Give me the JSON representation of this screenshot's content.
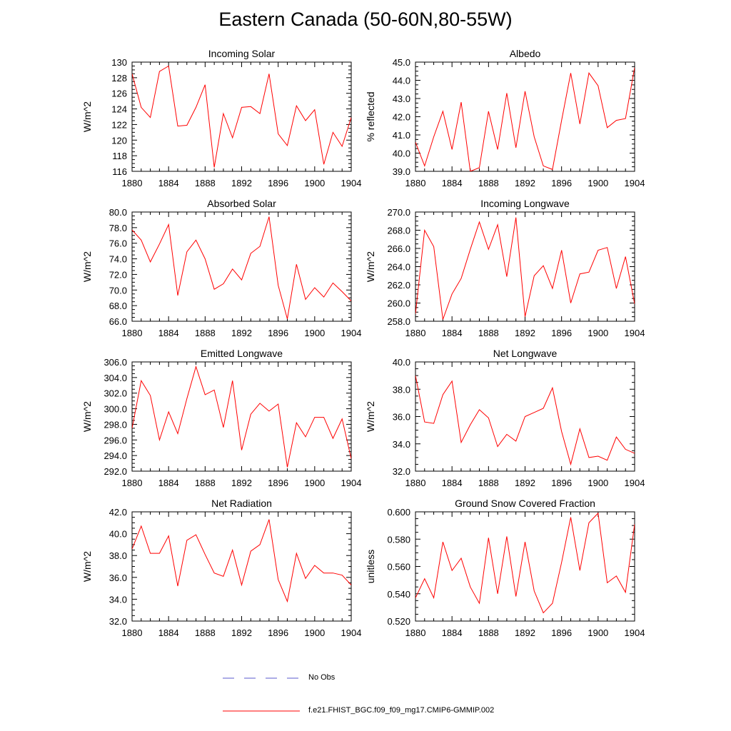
{
  "figure": {
    "title": "Eastern Canada (50-60N,80-55W)"
  },
  "chart_data": [
    {
      "type": "line",
      "title": "Incoming Solar",
      "ylabel": "W/m^2",
      "ylim": [
        116,
        130
      ],
      "yticks": [
        "116",
        "118",
        "120",
        "122",
        "124",
        "126",
        "128",
        "130"
      ],
      "xlim": [
        1880,
        1904
      ],
      "xticks": [
        "1880",
        "1884",
        "1888",
        "1892",
        "1896",
        "1900",
        "1904"
      ],
      "x": [
        1880,
        1881,
        1882,
        1883,
        1884,
        1885,
        1886,
        1887,
        1888,
        1889,
        1890,
        1891,
        1892,
        1893,
        1894,
        1895,
        1896,
        1897,
        1898,
        1899,
        1900,
        1901,
        1902,
        1903,
        1904
      ],
      "series": [
        {
          "values": [
            128.5,
            124.2,
            122.9,
            128.8,
            129.5,
            121.8,
            121.9,
            124.2,
            127.1,
            116.5,
            123.4,
            120.3,
            124.2,
            124.3,
            123.4,
            128.5,
            120.8,
            119.3,
            124.4,
            122.5,
            123.9,
            116.9,
            121.0,
            119.2,
            122.9
          ]
        }
      ]
    },
    {
      "type": "line",
      "title": "Albedo",
      "ylabel": "% reflected",
      "ylim": [
        39.0,
        45.0
      ],
      "yticks": [
        "39.0",
        "40.0",
        "41.0",
        "42.0",
        "43.0",
        "44.0",
        "45.0"
      ],
      "xlim": [
        1880,
        1904
      ],
      "xticks": [
        "1880",
        "1884",
        "1888",
        "1892",
        "1896",
        "1900",
        "1904"
      ],
      "x": [
        1880,
        1881,
        1882,
        1883,
        1884,
        1885,
        1886,
        1887,
        1888,
        1889,
        1890,
        1891,
        1892,
        1893,
        1894,
        1895,
        1896,
        1897,
        1898,
        1899,
        1900,
        1901,
        1902,
        1903,
        1904
      ],
      "series": [
        {
          "values": [
            40.6,
            39.3,
            40.9,
            42.3,
            40.2,
            42.8,
            39.0,
            39.2,
            42.3,
            40.2,
            43.3,
            40.3,
            43.4,
            40.9,
            39.3,
            39.1,
            41.8,
            44.4,
            41.6,
            44.4,
            43.7,
            41.4,
            41.8,
            41.9,
            44.7
          ]
        }
      ]
    },
    {
      "type": "line",
      "title": "Absorbed Solar",
      "ylabel": "W/m^2",
      "ylim": [
        66.0,
        80.0
      ],
      "yticks": [
        "66.0",
        "68.0",
        "70.0",
        "72.0",
        "74.0",
        "76.0",
        "78.0",
        "80.0"
      ],
      "xlim": [
        1880,
        1904
      ],
      "xticks": [
        "1880",
        "1884",
        "1888",
        "1892",
        "1896",
        "1900",
        "1904"
      ],
      "x": [
        1880,
        1881,
        1882,
        1883,
        1884,
        1885,
        1886,
        1887,
        1888,
        1889,
        1890,
        1891,
        1892,
        1893,
        1894,
        1895,
        1896,
        1897,
        1898,
        1899,
        1900,
        1901,
        1902,
        1903,
        1904
      ],
      "series": [
        {
          "values": [
            77.7,
            76.4,
            73.6,
            75.9,
            78.4,
            69.3,
            74.9,
            76.4,
            74.0,
            70.1,
            70.8,
            72.7,
            71.3,
            74.7,
            75.6,
            79.4,
            70.6,
            66.3,
            73.3,
            68.8,
            70.3,
            69.1,
            70.9,
            69.8,
            68.6
          ]
        }
      ]
    },
    {
      "type": "line",
      "title": "Incoming Longwave",
      "ylabel": "W/m^2",
      "ylim": [
        258.0,
        270.0
      ],
      "yticks": [
        "258.0",
        "260.0",
        "262.0",
        "264.0",
        "266.0",
        "268.0",
        "270.0"
      ],
      "xlim": [
        1880,
        1904
      ],
      "xticks": [
        "1880",
        "1884",
        "1888",
        "1892",
        "1896",
        "1900",
        "1904"
      ],
      "x": [
        1880,
        1881,
        1882,
        1883,
        1884,
        1885,
        1886,
        1887,
        1888,
        1889,
        1890,
        1891,
        1892,
        1893,
        1894,
        1895,
        1896,
        1897,
        1898,
        1899,
        1900,
        1901,
        1902,
        1903,
        1904
      ],
      "series": [
        {
          "values": [
            258.8,
            268.0,
            266.2,
            258.2,
            261.0,
            262.7,
            265.9,
            268.9,
            265.9,
            268.6,
            262.9,
            269.4,
            258.5,
            263.0,
            264.1,
            261.6,
            265.8,
            260.0,
            263.2,
            263.4,
            265.8,
            266.1,
            261.6,
            265.1,
            259.9
          ]
        }
      ]
    },
    {
      "type": "line",
      "title": "Emitted Longwave",
      "ylabel": "W/m^2",
      "ylim": [
        292.0,
        306.0
      ],
      "yticks": [
        "292.0",
        "294.0",
        "296.0",
        "298.0",
        "300.0",
        "302.0",
        "304.0",
        "306.0"
      ],
      "xlim": [
        1880,
        1904
      ],
      "xticks": [
        "1880",
        "1884",
        "1888",
        "1892",
        "1896",
        "1900",
        "1904"
      ],
      "x": [
        1880,
        1881,
        1882,
        1883,
        1884,
        1885,
        1886,
        1887,
        1888,
        1889,
        1890,
        1891,
        1892,
        1893,
        1894,
        1895,
        1896,
        1897,
        1898,
        1899,
        1900,
        1901,
        1902,
        1903,
        1904
      ],
      "series": [
        {
          "values": [
            297.5,
            303.6,
            301.7,
            296.0,
            299.6,
            296.8,
            301.3,
            305.4,
            301.8,
            302.4,
            297.6,
            303.6,
            294.7,
            299.3,
            300.7,
            299.7,
            300.6,
            292.5,
            298.2,
            296.4,
            298.9,
            298.9,
            296.2,
            298.7,
            293.6
          ]
        }
      ]
    },
    {
      "type": "line",
      "title": "Net Longwave",
      "ylabel": "W/m^2",
      "ylim": [
        32.0,
        40.0
      ],
      "yticks": [
        "32.0",
        "34.0",
        "36.0",
        "38.0",
        "40.0"
      ],
      "xlim": [
        1880,
        1904
      ],
      "xticks": [
        "1880",
        "1884",
        "1888",
        "1892",
        "1896",
        "1900",
        "1904"
      ],
      "x": [
        1880,
        1881,
        1882,
        1883,
        1884,
        1885,
        1886,
        1887,
        1888,
        1889,
        1890,
        1891,
        1892,
        1893,
        1894,
        1895,
        1896,
        1897,
        1898,
        1899,
        1900,
        1901,
        1902,
        1903,
        1904
      ],
      "series": [
        {
          "values": [
            39.0,
            35.6,
            35.5,
            37.6,
            38.6,
            34.1,
            35.4,
            36.5,
            35.9,
            33.8,
            34.7,
            34.2,
            36.0,
            36.3,
            36.6,
            38.1,
            34.9,
            32.5,
            35.1,
            33.0,
            33.1,
            32.8,
            34.5,
            33.6,
            33.3
          ]
        }
      ]
    },
    {
      "type": "line",
      "title": "Net Radiation",
      "ylabel": "W/m^2",
      "ylim": [
        32.0,
        42.0
      ],
      "yticks": [
        "32.0",
        "34.0",
        "36.0",
        "38.0",
        "40.0",
        "42.0"
      ],
      "xlim": [
        1880,
        1904
      ],
      "xticks": [
        "1880",
        "1884",
        "1888",
        "1892",
        "1896",
        "1900",
        "1904"
      ],
      "x": [
        1880,
        1881,
        1882,
        1883,
        1884,
        1885,
        1886,
        1887,
        1888,
        1889,
        1890,
        1891,
        1892,
        1893,
        1894,
        1895,
        1896,
        1897,
        1898,
        1899,
        1900,
        1901,
        1902,
        1903,
        1904
      ],
      "series": [
        {
          "values": [
            38.6,
            40.7,
            38.2,
            38.2,
            39.8,
            35.2,
            39.4,
            39.9,
            38.1,
            36.4,
            36.1,
            38.5,
            35.3,
            38.4,
            39.0,
            41.3,
            35.8,
            33.8,
            38.2,
            35.9,
            37.1,
            36.4,
            36.4,
            36.2,
            35.3
          ]
        }
      ]
    },
    {
      "type": "line",
      "title": "Ground Snow Covered Fraction",
      "ylabel": "unitless",
      "ylim": [
        0.52,
        0.6
      ],
      "yticks": [
        "0.520",
        "0.540",
        "0.560",
        "0.580",
        "0.600"
      ],
      "xlim": [
        1880,
        1904
      ],
      "xticks": [
        "1880",
        "1884",
        "1888",
        "1892",
        "1896",
        "1900",
        "1904"
      ],
      "x": [
        1880,
        1881,
        1882,
        1883,
        1884,
        1885,
        1886,
        1887,
        1888,
        1889,
        1890,
        1891,
        1892,
        1893,
        1894,
        1895,
        1896,
        1897,
        1898,
        1899,
        1900,
        1901,
        1902,
        1903,
        1904
      ],
      "series": [
        {
          "values": [
            0.537,
            0.551,
            0.537,
            0.578,
            0.557,
            0.566,
            0.545,
            0.533,
            0.581,
            0.54,
            0.582,
            0.538,
            0.578,
            0.542,
            0.526,
            0.533,
            0.563,
            0.596,
            0.557,
            0.592,
            0.599,
            0.548,
            0.553,
            0.541,
            0.591
          ]
        }
      ]
    }
  ],
  "legend": {
    "items": [
      {
        "label": "No Obs",
        "color": "#5a5acd",
        "style": "dashed"
      },
      {
        "label": "f.e21.FHIST_BGC.f09_f09_mg17.CMIP6-GMMIP.002",
        "color": "#ff0000",
        "style": "solid"
      }
    ]
  },
  "colors": {
    "series_line": "#ff0000",
    "axis": "#000000"
  }
}
